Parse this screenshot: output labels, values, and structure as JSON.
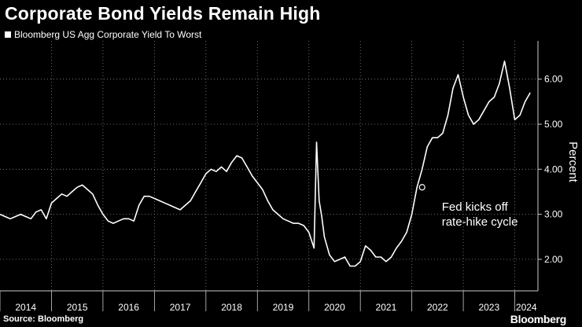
{
  "title": "Corporate Bond Yields Remain High",
  "legend": {
    "label": "Bloomberg US Agg Corporate Yield To Worst"
  },
  "source": "Source: Bloomberg",
  "brand": "Bloomberg",
  "colors": {
    "background": "#000000",
    "line": "#ffffff",
    "grid": "#8a8a8a"
  },
  "chart_data": {
    "type": "line",
    "title": "Corporate Bond Yields Remain High",
    "ylabel": "Percent",
    "xlabel": "",
    "ylim": [
      1.3,
      6.85
    ],
    "xlim": [
      2014.0,
      2024.45
    ],
    "yticks": [
      2.0,
      3.0,
      4.0,
      5.0,
      6.0
    ],
    "ytick_labels": [
      "2.00",
      "3.00",
      "4.00",
      "5.00",
      "6.00"
    ],
    "xticks": [
      "2014",
      "2015",
      "2016",
      "2017",
      "2018",
      "2019",
      "2020",
      "2021",
      "2022",
      "2023",
      "2024"
    ],
    "grid": true,
    "legend_position": "top-left",
    "annotations": [
      {
        "text": "Fed kicks off\nrate-hike cycle",
        "x": 2022.2,
        "y": 3.6
      }
    ],
    "series": [
      {
        "name": "Bloomberg US Agg Corporate Yield To Worst",
        "x": [
          2014.0,
          2014.1,
          2014.2,
          2014.3,
          2014.4,
          2014.5,
          2014.6,
          2014.7,
          2014.8,
          2014.9,
          2015.0,
          2015.1,
          2015.2,
          2015.3,
          2015.4,
          2015.5,
          2015.6,
          2015.7,
          2015.8,
          2015.9,
          2016.0,
          2016.1,
          2016.2,
          2016.3,
          2016.4,
          2016.5,
          2016.6,
          2016.7,
          2016.8,
          2016.9,
          2017.0,
          2017.1,
          2017.2,
          2017.3,
          2017.4,
          2017.5,
          2017.6,
          2017.7,
          2017.8,
          2017.9,
          2018.0,
          2018.1,
          2018.2,
          2018.3,
          2018.4,
          2018.5,
          2018.6,
          2018.7,
          2018.8,
          2018.9,
          2019.0,
          2019.1,
          2019.2,
          2019.3,
          2019.4,
          2019.5,
          2019.6,
          2019.7,
          2019.8,
          2019.9,
          2020.0,
          2020.1,
          2020.15,
          2020.2,
          2020.25,
          2020.3,
          2020.4,
          2020.5,
          2020.6,
          2020.7,
          2020.8,
          2020.9,
          2021.0,
          2021.1,
          2021.2,
          2021.3,
          2021.4,
          2021.5,
          2021.6,
          2021.7,
          2021.8,
          2021.9,
          2022.0,
          2022.1,
          2022.2,
          2022.3,
          2022.4,
          2022.5,
          2022.6,
          2022.7,
          2022.8,
          2022.9,
          2023.0,
          2023.1,
          2023.2,
          2023.3,
          2023.4,
          2023.5,
          2023.6,
          2023.7,
          2023.8,
          2023.9,
          2024.0,
          2024.1,
          2024.2,
          2024.3
        ],
        "y": [
          3.0,
          2.95,
          2.9,
          2.95,
          3.0,
          2.95,
          2.9,
          3.05,
          3.1,
          2.9,
          3.25,
          3.35,
          3.45,
          3.4,
          3.5,
          3.6,
          3.65,
          3.55,
          3.45,
          3.2,
          3.0,
          2.85,
          2.8,
          2.85,
          2.9,
          2.9,
          2.85,
          3.2,
          3.4,
          3.4,
          3.35,
          3.3,
          3.25,
          3.2,
          3.15,
          3.1,
          3.2,
          3.3,
          3.5,
          3.7,
          3.9,
          4.0,
          3.95,
          4.05,
          3.95,
          4.15,
          4.3,
          4.25,
          4.05,
          3.85,
          3.7,
          3.55,
          3.3,
          3.1,
          3.0,
          2.9,
          2.85,
          2.8,
          2.8,
          2.75,
          2.6,
          2.25,
          4.6,
          3.3,
          2.95,
          2.5,
          2.1,
          1.95,
          2.0,
          2.05,
          1.85,
          1.85,
          1.95,
          2.3,
          2.2,
          2.05,
          2.05,
          1.95,
          2.05,
          2.25,
          2.4,
          2.6,
          3.0,
          3.6,
          4.0,
          4.5,
          4.7,
          4.7,
          4.8,
          5.2,
          5.8,
          6.1,
          5.6,
          5.2,
          5.0,
          5.1,
          5.3,
          5.5,
          5.6,
          5.9,
          6.4,
          5.8,
          5.1,
          5.2,
          5.5,
          5.7
        ]
      }
    ]
  }
}
